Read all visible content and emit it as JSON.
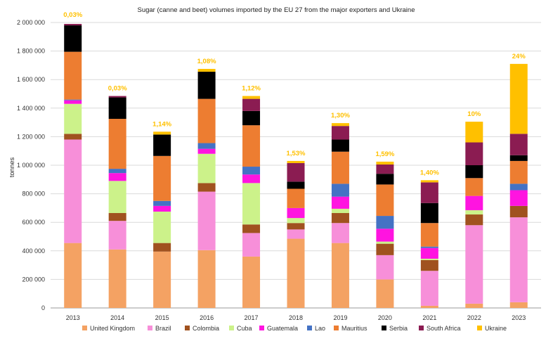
{
  "chart_data": {
    "type": "bar",
    "stacked": true,
    "title": "Sugar (canne and beet) volumes imported by the EU 27 from the major exporters and Ukraine",
    "xlabel": "",
    "ylabel": "tonnes",
    "ylim": [
      0,
      2000000
    ],
    "yticks": [
      0,
      200000,
      400000,
      600000,
      800000,
      1000000,
      1200000,
      1400000,
      1600000,
      1800000,
      2000000
    ],
    "ytick_labels": [
      "0",
      "200 000",
      "400 000",
      "600 000",
      "800 000",
      "1 000 000",
      "1 200 000",
      "1 400 000",
      "1 600 000",
      "1 800 000",
      "2 000 000"
    ],
    "grid": true,
    "legend_position": "bottom",
    "categories": [
      "2013",
      "2014",
      "2015",
      "2016",
      "2017",
      "2018",
      "2019",
      "2020",
      "2021",
      "2022",
      "2023"
    ],
    "series": [
      {
        "name": "United Kingdom",
        "color": "#F4A263",
        "values": [
          455000,
          410000,
          395000,
          405000,
          360000,
          485000,
          455000,
          200000,
          15000,
          30000,
          40000
        ]
      },
      {
        "name": "Brazil",
        "color": "#F78FD9",
        "values": [
          725000,
          200000,
          0,
          410000,
          165000,
          65000,
          140000,
          170000,
          245000,
          550000,
          595000
        ]
      },
      {
        "name": "Colombia",
        "color": "#A0521F",
        "values": [
          40000,
          55000,
          60000,
          60000,
          60000,
          45000,
          70000,
          80000,
          75000,
          75000,
          80000
        ]
      },
      {
        "name": "Cuba",
        "color": "#CCF28A",
        "values": [
          210000,
          225000,
          220000,
          205000,
          290000,
          35000,
          30000,
          15000,
          10000,
          30000,
          0
        ]
      },
      {
        "name": "Guatemala",
        "color": "#FF14E0",
        "values": [
          25000,
          55000,
          40000,
          35000,
          60000,
          70000,
          85000,
          90000,
          75000,
          100000,
          110000
        ]
      },
      {
        "name": "Lao",
        "color": "#4472C4",
        "values": [
          5000,
          30000,
          35000,
          40000,
          55000,
          0,
          90000,
          90000,
          10000,
          0,
          45000
        ]
      },
      {
        "name": "Mauritius",
        "color": "#ED7D31",
        "values": [
          335000,
          350000,
          315000,
          310000,
          290000,
          135000,
          225000,
          220000,
          165000,
          125000,
          160000
        ]
      },
      {
        "name": "Serbia",
        "color": "#000000",
        "values": [
          185000,
          150000,
          150000,
          190000,
          100000,
          50000,
          85000,
          75000,
          140000,
          90000,
          40000
        ]
      },
      {
        "name": "South Africa",
        "color": "#8B1C52",
        "values": [
          10000,
          10000,
          0,
          0,
          85000,
          130000,
          95000,
          65000,
          145000,
          160000,
          150000
        ]
      },
      {
        "name": "Ukraine",
        "color": "#FFC000",
        "values": [
          0,
          0,
          20000,
          20000,
          20000,
          15000,
          20000,
          20000,
          15000,
          145000,
          490000
        ]
      }
    ],
    "annotations": [
      {
        "category": "2013",
        "label": "0,03%"
      },
      {
        "category": "2014",
        "label": "0,03%"
      },
      {
        "category": "2015",
        "label": "1,14%"
      },
      {
        "category": "2016",
        "label": "1,08%"
      },
      {
        "category": "2017",
        "label": "1,12%"
      },
      {
        "category": "2018",
        "label": "1,53%"
      },
      {
        "category": "2019",
        "label": "1,30%"
      },
      {
        "category": "2020",
        "label": "1,59%"
      },
      {
        "category": "2021",
        "label": "1,40%"
      },
      {
        "category": "2022",
        "label": "10%"
      },
      {
        "category": "2023",
        "label": "24%"
      }
    ],
    "annotation_color": "#FFC000"
  }
}
